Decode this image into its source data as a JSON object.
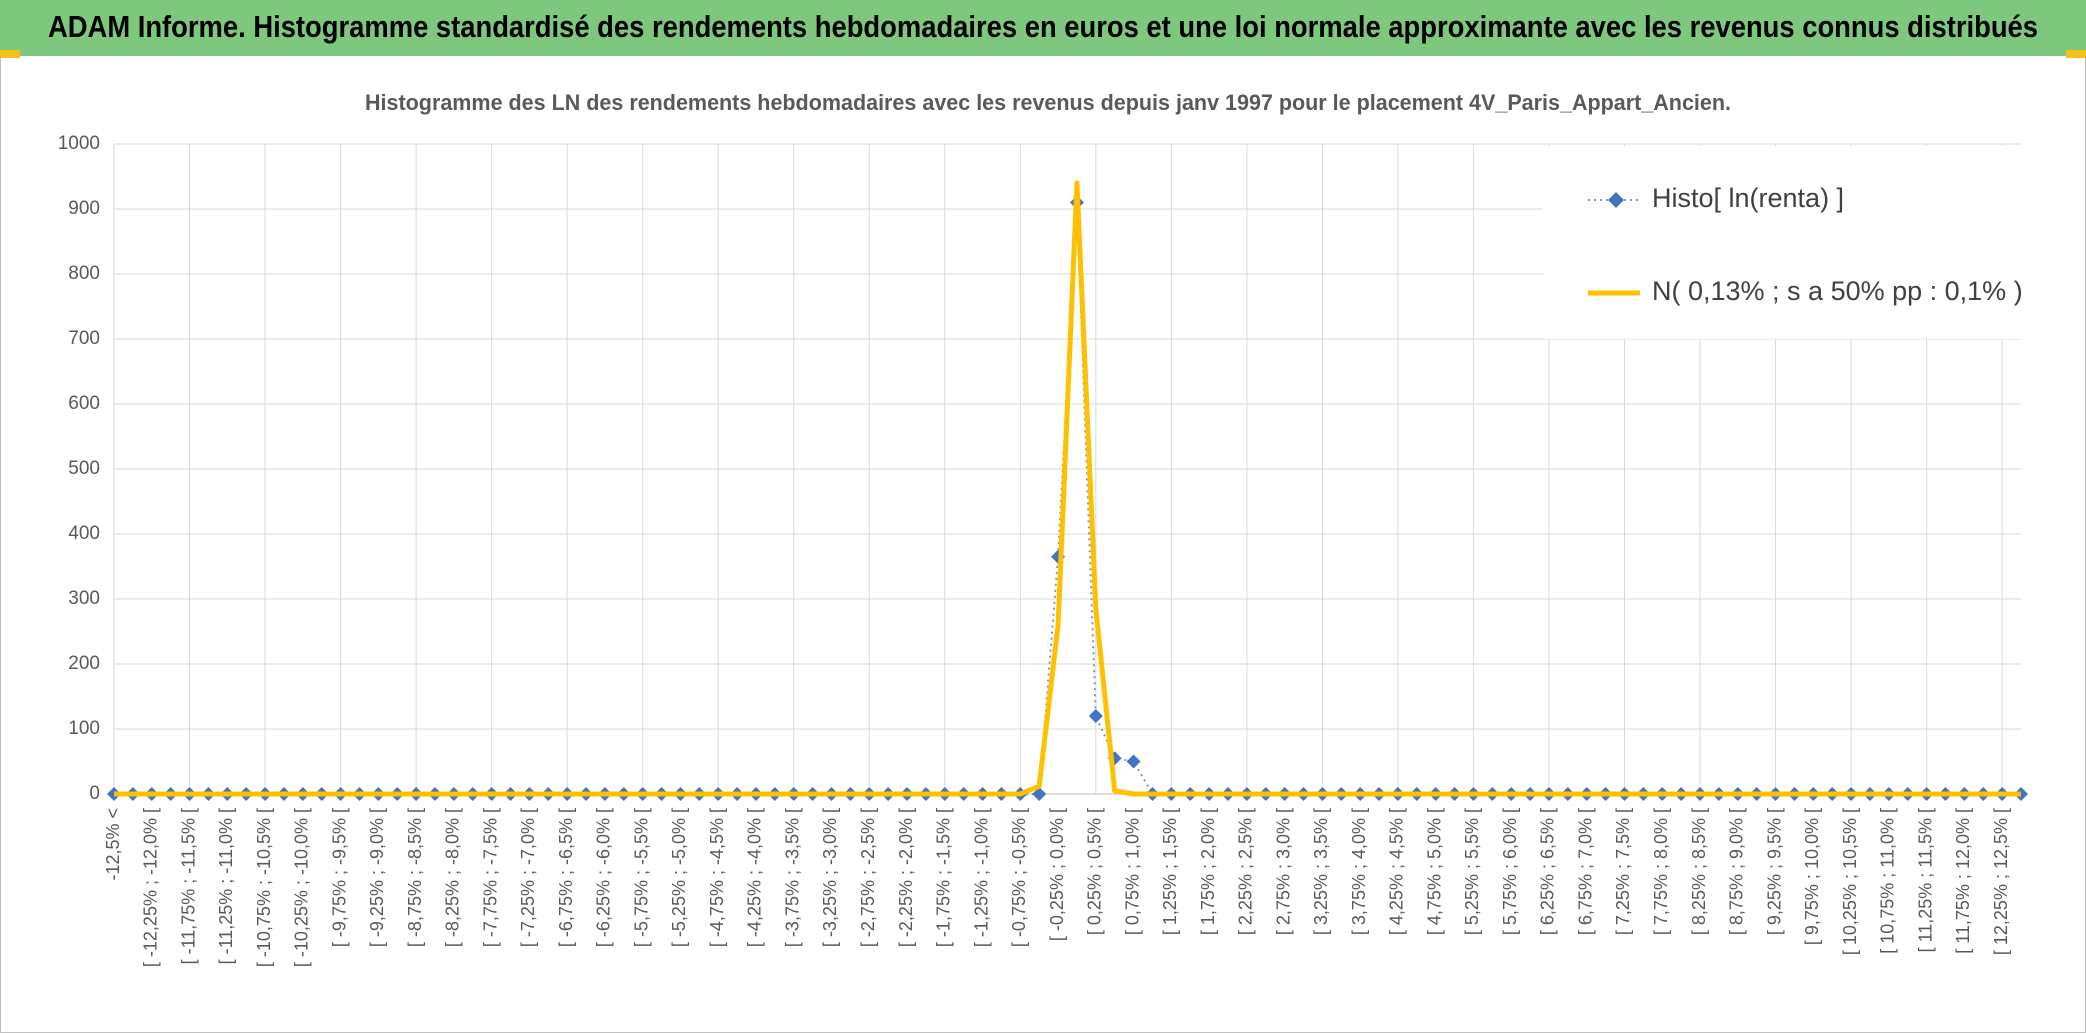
{
  "header": {
    "title": "ADAM Informe. Histogramme standardisé des rendements hebdomadaires en euros et une loi normale approximante avec les revenus connus distribués"
  },
  "chart_data": {
    "type": "line",
    "title": "Histogramme des LN des rendements hebdomadaires avec les revenus depuis janv 1997 pour le placement 4V_Paris_Appart_Ancien.",
    "categories": [
      "-12,5% <",
      null,
      "[ -12,25% ; -12,0% [",
      null,
      "[ -11,75% ; -11,5% [",
      null,
      "[ -11,25% ; -11,0% [",
      null,
      "[ -10,75% ; -10,5% [",
      null,
      "[ -10,25% ; -10,0% [",
      null,
      "[ -9,75% ; -9,5% [",
      null,
      "[ -9,25% ; -9,0% [",
      null,
      "[ -8,75% ; -8,5% [",
      null,
      "[ -8,25% ; -8,0% [",
      null,
      "[ -7,75% ; -7,5% [",
      null,
      "[ -7,25% ; -7,0% [",
      null,
      "[ -6,75% ; -6,5% [",
      null,
      "[ -6,25% ; -6,0% [",
      null,
      "[ -5,75% ; -5,5% [",
      null,
      "[ -5,25% ; -5,0% [",
      null,
      "[ -4,75% ; -4,5% [",
      null,
      "[ -4,25% ; -4,0% [",
      null,
      "[ -3,75% ; -3,5% [",
      null,
      "[ -3,25% ; -3,0% [",
      null,
      "[ -2,75% ; -2,5% [",
      null,
      "[ -2,25% ; -2,0% [",
      null,
      "[ -1,75% ; -1,5% [",
      null,
      "[ -1,25% ; -1,0% [",
      null,
      "[ -0,75% ; -0,5% [",
      null,
      "[ -0,25% ; 0,0% [",
      null,
      "[ 0,25% ; 0,5% [",
      null,
      "[ 0,75% ; 1,0% [",
      null,
      "[ 1,25% ; 1,5% [",
      null,
      "[ 1,75% ; 2,0% [",
      null,
      "[ 2,25% ; 2,5% [",
      null,
      "[ 2,75% ; 3,0% [",
      null,
      "[ 3,25% ; 3,5% [",
      null,
      "[ 3,75% ; 4,0% [",
      null,
      "[ 4,25% ; 4,5% [",
      null,
      "[ 4,75% ; 5,0% [",
      null,
      "[ 5,25% ; 5,5% [",
      null,
      "[ 5,75% ; 6,0% [",
      null,
      "[ 6,25% ; 6,5% [",
      null,
      "[ 6,75% ; 7,0% [",
      null,
      "[ 7,25% ; 7,5% [",
      null,
      "[ 7,75% ; 8,0% [",
      null,
      "[ 8,25% ; 8,5% [",
      null,
      "[ 8,75% ; 9,0% [",
      null,
      "[ 9,25% ; 9,5% [",
      null,
      "[ 9,75% ; 10,0% [",
      null,
      "[ 10,25% ; 10,5% [",
      null,
      "[ 10,75% ; 11,0% [",
      null,
      "[ 11,25% ; 11,5% [",
      null,
      "[ 11,75% ; 12,0% [",
      null,
      "[ 12,25% ; 12,5% [",
      null
    ],
    "series": [
      {
        "name": "Histo[ ln(renta) ]",
        "color": "#4472c4",
        "line_color": "#8497b0",
        "line_style": "dotted",
        "line_width": 2,
        "marker": "diamond",
        "values": [
          0,
          0,
          0,
          0,
          0,
          0,
          0,
          0,
          0,
          0,
          0,
          0,
          0,
          0,
          0,
          0,
          0,
          0,
          0,
          0,
          0,
          0,
          0,
          0,
          0,
          0,
          0,
          0,
          0,
          0,
          0,
          0,
          0,
          0,
          0,
          0,
          0,
          0,
          0,
          0,
          0,
          0,
          0,
          0,
          0,
          0,
          0,
          0,
          0,
          0,
          365,
          910,
          120,
          55,
          50,
          0,
          0,
          0,
          0,
          0,
          0,
          0,
          0,
          0,
          0,
          0,
          0,
          0,
          0,
          0,
          0,
          0,
          0,
          0,
          0,
          0,
          0,
          0,
          0,
          0,
          0,
          0,
          0,
          0,
          0,
          0,
          0,
          0,
          0,
          0,
          0,
          0,
          0,
          0,
          0,
          0,
          0,
          0,
          0,
          0,
          0,
          0
        ]
      },
      {
        "name": "N( 0,13% ; s a 50% pp : 0,1% )",
        "color": "#ffc000",
        "line_color": "#ffc000",
        "line_style": "solid",
        "line_width": 5,
        "values": [
          0,
          0,
          0,
          0,
          0,
          0,
          0,
          0,
          0,
          0,
          0,
          0,
          0,
          0,
          0,
          0,
          0,
          0,
          0,
          0,
          0,
          0,
          0,
          0,
          0,
          0,
          0,
          0,
          0,
          0,
          0,
          0,
          0,
          0,
          0,
          0,
          0,
          0,
          0,
          0,
          0,
          0,
          0,
          0,
          0,
          0,
          0,
          0,
          0,
          12,
          260,
          940,
          285,
          5,
          0,
          0,
          0,
          0,
          0,
          0,
          0,
          0,
          0,
          0,
          0,
          0,
          0,
          0,
          0,
          0,
          0,
          0,
          0,
          0,
          0,
          0,
          0,
          0,
          0,
          0,
          0,
          0,
          0,
          0,
          0,
          0,
          0,
          0,
          0,
          0,
          0,
          0,
          0,
          0,
          0,
          0,
          0,
          0,
          0,
          0,
          0,
          0
        ]
      }
    ],
    "ylim": [
      0,
      1000
    ],
    "yticks": [
      0,
      100,
      200,
      300,
      400,
      500,
      600,
      700,
      800,
      900,
      1000
    ],
    "grid": true,
    "legend": "top-right"
  }
}
